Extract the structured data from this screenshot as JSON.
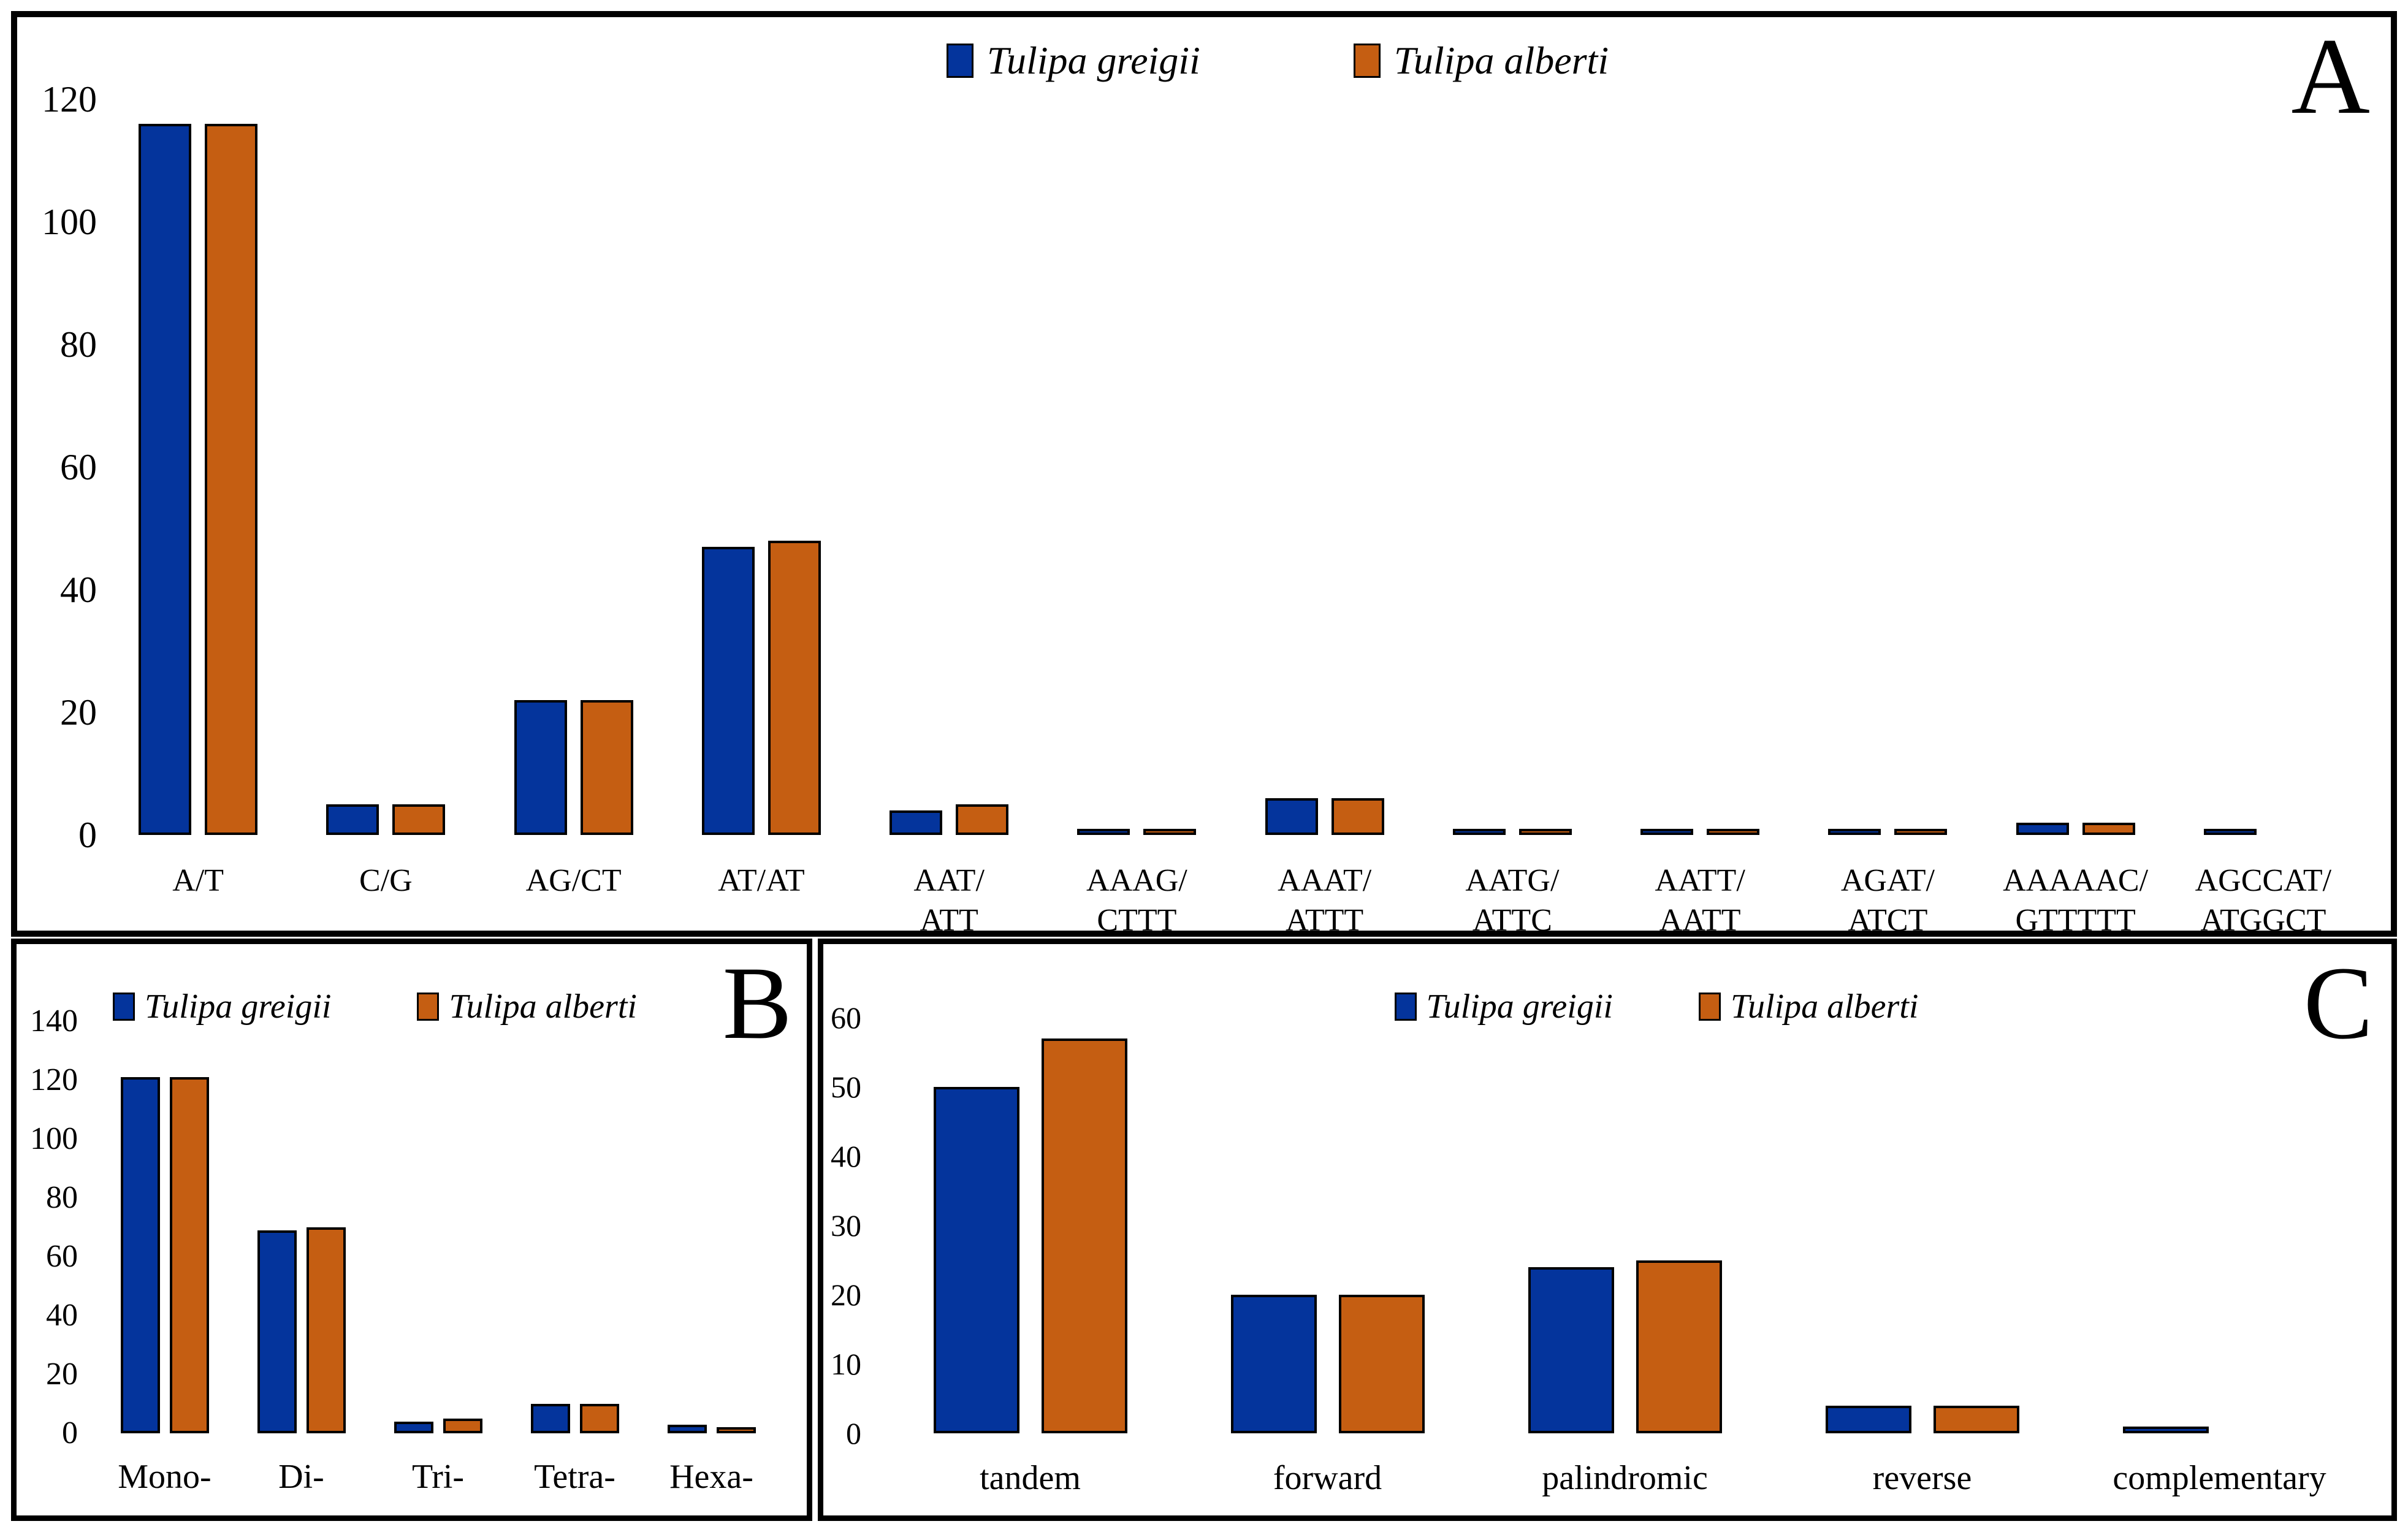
{
  "figure": {
    "background": "#ffffff",
    "border_color": "#000000",
    "series_names": [
      "Tulipa greigii",
      "Tulipa alberti"
    ],
    "series_colors": [
      "#04349C",
      "#C55E12"
    ]
  },
  "chart_data": [
    {
      "type": "bar",
      "panel_letter": "A",
      "title": "",
      "xlabel": "",
      "ylabel": "",
      "grid": false,
      "legend_position": "top-center",
      "ylim": [
        0,
        120
      ],
      "yticks": [
        0,
        20,
        40,
        60,
        80,
        100,
        120
      ],
      "categories": [
        "A/T",
        "C/G",
        "AG/CT",
        "AT/AT",
        "AAT/\nATT",
        "AAAG/\nCTTT",
        "AAAT/\nATTT",
        "AATG/\nATTC",
        "AATT/\nAATT",
        "AGAT/\nATCT",
        "AAAAAC/\nGTTTTT",
        "AGCCAT/\nATGGCT"
      ],
      "series": [
        {
          "name": "Tulipa greigii",
          "color": "#04349C",
          "values": [
            116,
            5,
            22,
            47,
            4,
            1,
            6,
            1,
            1,
            1,
            2,
            1
          ]
        },
        {
          "name": "Tulipa alberti",
          "color": "#C55E12",
          "values": [
            116,
            5,
            22,
            48,
            5,
            1,
            6,
            1,
            1,
            1,
            2,
            0
          ]
        }
      ]
    },
    {
      "type": "bar",
      "panel_letter": "B",
      "title": "",
      "xlabel": "",
      "ylabel": "",
      "grid": false,
      "legend_position": "top-center",
      "ylim": [
        0,
        140
      ],
      "yticks": [
        0,
        20,
        40,
        60,
        80,
        100,
        120,
        140
      ],
      "categories": [
        "Mono-",
        "Di-",
        "Tri-",
        "Tetra-",
        "Hexa-"
      ],
      "series": [
        {
          "name": "Tulipa greigii",
          "color": "#04349C",
          "values": [
            121,
            69,
            4,
            10,
            3
          ]
        },
        {
          "name": "Tulipa alberti",
          "color": "#C55E12",
          "values": [
            121,
            70,
            5,
            10,
            2
          ]
        }
      ]
    },
    {
      "type": "bar",
      "panel_letter": "C",
      "title": "",
      "xlabel": "",
      "ylabel": "",
      "grid": false,
      "legend_position": "top-center",
      "ylim": [
        0,
        60
      ],
      "yticks": [
        0,
        10,
        20,
        30,
        40,
        50,
        60
      ],
      "categories": [
        "tandem",
        "forward",
        "palindromic",
        "reverse",
        "complementary"
      ],
      "series": [
        {
          "name": "Tulipa greigii",
          "color": "#04349C",
          "values": [
            50,
            20,
            24,
            4,
            1
          ]
        },
        {
          "name": "Tulipa alberti",
          "color": "#C55E12",
          "values": [
            57,
            20,
            25,
            4,
            0
          ]
        }
      ]
    }
  ]
}
